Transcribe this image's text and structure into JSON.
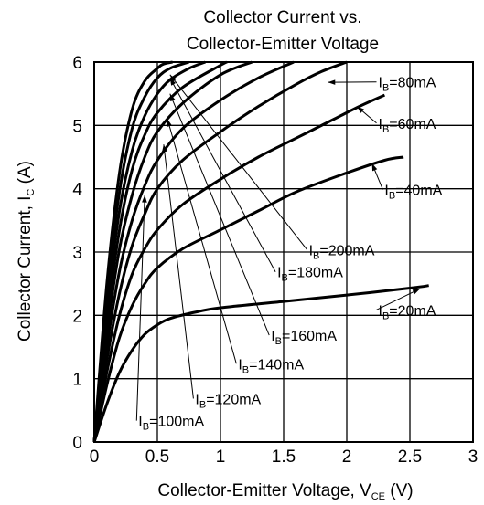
{
  "chart_data": {
    "type": "line",
    "title": [
      "Collector Current vs.",
      "Collector-Emitter Voltage"
    ],
    "xlabel": {
      "main": "Collector-Emitter Voltage, V",
      "sub": "CE",
      "unit": " (V)"
    },
    "ylabel": {
      "main": "Collector Current, I",
      "sub": "C",
      "unit": " (A)"
    },
    "xlim": [
      0,
      3
    ],
    "ylim": [
      0,
      6
    ],
    "xticks": [
      0,
      0.5,
      1,
      1.5,
      2,
      2.5,
      3
    ],
    "xtick_labels": [
      "0",
      "0.5",
      "1",
      "1.5",
      "2",
      "2.5",
      "3"
    ],
    "yticks": [
      0,
      1,
      2,
      3,
      4,
      5,
      6
    ],
    "ytick_labels": [
      "0",
      "1",
      "2",
      "3",
      "4",
      "5",
      "6"
    ],
    "grid": true,
    "series": [
      {
        "name": "IB=20mA",
        "label_prefix": "I",
        "label_sub": "B",
        "label_value": "=20mA",
        "x": [
          0,
          0.1,
          0.2,
          0.3,
          0.4,
          0.5,
          0.6,
          0.8,
          1.0,
          1.5,
          2.0,
          2.5,
          2.65
        ],
        "y": [
          0,
          0.6,
          1.1,
          1.45,
          1.7,
          1.85,
          1.95,
          2.05,
          2.12,
          2.22,
          2.32,
          2.43,
          2.47
        ],
        "label_at": [
          2.25,
          2.0
        ],
        "arrow_to": [
          2.58,
          2.42
        ]
      },
      {
        "name": "IB=40mA",
        "label_prefix": "I",
        "label_sub": "B",
        "label_value": "=40mA",
        "x": [
          0,
          0.1,
          0.2,
          0.3,
          0.4,
          0.5,
          0.7,
          1.0,
          1.3,
          1.6,
          2.0,
          2.3,
          2.45
        ],
        "y": [
          0,
          0.9,
          1.65,
          2.15,
          2.5,
          2.75,
          3.05,
          3.35,
          3.65,
          3.95,
          4.25,
          4.45,
          4.5
        ],
        "label_at": [
          2.3,
          3.9
        ],
        "arrow_to": [
          2.2,
          4.4
        ]
      },
      {
        "name": "IB=60mA",
        "label_prefix": "I",
        "label_sub": "B",
        "label_value": "=60mA",
        "x": [
          0,
          0.1,
          0.2,
          0.3,
          0.4,
          0.5,
          0.7,
          1.0,
          1.3,
          1.6,
          1.9,
          2.1,
          2.3
        ],
        "y": [
          0,
          1.1,
          2.0,
          2.65,
          3.05,
          3.35,
          3.75,
          4.15,
          4.5,
          4.8,
          5.1,
          5.3,
          5.48
        ],
        "label_at": [
          2.25,
          4.95
        ],
        "arrow_to": [
          2.08,
          5.3
        ]
      },
      {
        "name": "IB=80mA",
        "label_prefix": "I",
        "label_sub": "B",
        "label_value": "=80mA",
        "x": [
          0,
          0.1,
          0.2,
          0.3,
          0.4,
          0.5,
          0.7,
          1.0,
          1.3,
          1.6,
          1.8,
          2.0
        ],
        "y": [
          0,
          1.3,
          2.35,
          3.1,
          3.6,
          4.0,
          4.45,
          4.9,
          5.3,
          5.65,
          5.85,
          6.0
        ],
        "label_at": [
          2.25,
          5.6
        ],
        "arrow_to": [
          1.85,
          5.68
        ]
      },
      {
        "name": "IB=100mA",
        "label_prefix": "I",
        "label_sub": "B",
        "label_value": "=100mA",
        "x": [
          0,
          0.1,
          0.2,
          0.3,
          0.4,
          0.5,
          0.7,
          1.0,
          1.3,
          1.58
        ],
        "y": [
          0,
          1.5,
          2.7,
          3.5,
          4.05,
          4.45,
          4.95,
          5.4,
          5.75,
          6.0
        ],
        "label_at": [
          0.35,
          0.25
        ],
        "arrow_to": [
          0.4,
          3.9
        ]
      },
      {
        "name": "IB=120mA",
        "label_prefix": "I",
        "label_sub": "B",
        "label_value": "=120mA",
        "x": [
          0,
          0.1,
          0.2,
          0.3,
          0.4,
          0.5,
          0.7,
          1.0,
          1.25
        ],
        "y": [
          0,
          1.7,
          3.05,
          3.9,
          4.5,
          4.9,
          5.35,
          5.8,
          6.0
        ],
        "label_at": [
          0.8,
          0.6
        ],
        "arrow_to": [
          0.55,
          4.7
        ]
      },
      {
        "name": "IB=140mA",
        "label_prefix": "I",
        "label_sub": "B",
        "label_value": "=140mA",
        "x": [
          0,
          0.1,
          0.2,
          0.3,
          0.4,
          0.5,
          0.7,
          1.0,
          1.05
        ],
        "y": [
          0,
          1.9,
          3.35,
          4.3,
          4.85,
          5.2,
          5.6,
          5.95,
          6.0
        ],
        "label_at": [
          1.14,
          1.15
        ],
        "arrow_to": [
          0.58,
          5.1
        ]
      },
      {
        "name": "IB=160mA",
        "label_prefix": "I",
        "label_sub": "B",
        "label_value": "=160mA",
        "x": [
          0,
          0.1,
          0.2,
          0.3,
          0.4,
          0.5,
          0.6,
          0.75,
          0.88
        ],
        "y": [
          0,
          2.1,
          3.65,
          4.6,
          5.15,
          5.5,
          5.72,
          5.9,
          6.0
        ],
        "label_at": [
          1.4,
          1.6
        ],
        "arrow_to": [
          0.6,
          5.5
        ]
      },
      {
        "name": "IB=180mA",
        "label_prefix": "I",
        "label_sub": "B",
        "label_value": "=180mA",
        "x": [
          0,
          0.1,
          0.2,
          0.3,
          0.4,
          0.5,
          0.6,
          0.75
        ],
        "y": [
          0,
          2.3,
          3.95,
          4.95,
          5.45,
          5.75,
          5.9,
          6.0
        ],
        "label_at": [
          1.45,
          2.6
        ],
        "arrow_to": [
          0.6,
          5.75
        ]
      },
      {
        "name": "IB=200mA",
        "label_prefix": "I",
        "label_sub": "B",
        "label_value": "=200mA",
        "x": [
          0,
          0.1,
          0.2,
          0.3,
          0.4,
          0.5,
          0.55,
          0.62
        ],
        "y": [
          0,
          2.5,
          4.25,
          5.25,
          5.7,
          5.9,
          5.97,
          6.0
        ],
        "label_at": [
          1.7,
          2.95
        ],
        "arrow_to": [
          0.6,
          5.8
        ]
      }
    ]
  }
}
